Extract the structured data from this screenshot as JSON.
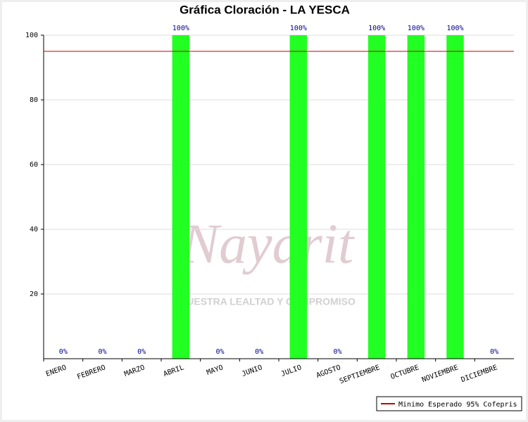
{
  "chart_data": {
    "type": "bar",
    "title": "Gráfica Cloración - LA YESCA",
    "categories": [
      "ENERO",
      "FEBRERO",
      "MARZO",
      "ABRIL",
      "MAYO",
      "JUNIO",
      "JULIO",
      "AGOSTO",
      "SEPTIEMBRE",
      "OCTUBRE",
      "NOVIEMBRE",
      "DICIEMBRE"
    ],
    "values": [
      0,
      0,
      0,
      100,
      0,
      0,
      100,
      0,
      100,
      100,
      100,
      0
    ],
    "value_labels": [
      "0%",
      "0%",
      "0%",
      "100%",
      "0%",
      "0%",
      "100%",
      "0%",
      "100%",
      "100%",
      "100%",
      "0%"
    ],
    "color": "#22ff22",
    "ylim": [
      0,
      100
    ],
    "yticks": [
      20,
      40,
      60,
      80,
      100
    ],
    "grid": true,
    "reference_line": {
      "value": 95,
      "color": "#cc0000",
      "label": "Minimo Esperado 95% Cofepris"
    },
    "legend_position": "bottom-right",
    "watermark": {
      "name": "Nayarit",
      "motto": "NUESTRA LEALTAD Y COMPROMISO"
    }
  }
}
